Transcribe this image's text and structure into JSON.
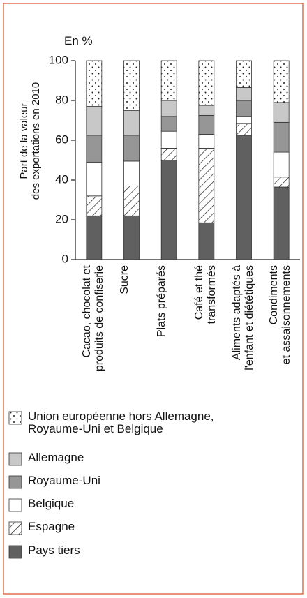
{
  "chart_data": {
    "type": "stacked_bar",
    "y_unit_label": "En %",
    "y_axis_label": "Part de la valeur\ndes exportations en 2010",
    "categories": [
      "Cacao, chocolat et\nproduits de confiserie",
      "Sucre",
      "Plats préparés",
      "Café et thé\ntransformés",
      "Aliments adaptés à\nl'enfant et diététiques",
      "Condiments\net assaisonnements"
    ],
    "series": [
      {
        "name": "Pays tiers",
        "color": "#606060",
        "values": [
          22,
          22,
          50,
          18.5,
          62.5,
          36.5
        ]
      },
      {
        "name": "Espagne",
        "color": "#ffffff",
        "pattern": "hatch",
        "values": [
          10,
          15,
          6,
          37.5,
          6,
          5
        ]
      },
      {
        "name": "Belgique",
        "color": "#ffffff",
        "values": [
          17,
          12.5,
          8.5,
          7,
          3.5,
          12.5
        ]
      },
      {
        "name": "Royaume-Uni",
        "color": "#969696",
        "values": [
          13.5,
          13,
          7.5,
          9.5,
          8,
          15
        ]
      },
      {
        "name": "Allemagne",
        "color": "#c8c8c8",
        "values": [
          14.5,
          12.5,
          8,
          5,
          6.5,
          10
        ]
      },
      {
        "name": "Union européenne hors Allemagne,\nRoyaume-Uni et Belgique",
        "color": "#ffffff",
        "pattern": "dots",
        "values": [
          23,
          25,
          20,
          22.5,
          13.5,
          21
        ]
      }
    ],
    "ylim": [
      0,
      100
    ],
    "yticks": [
      0,
      20,
      40,
      60,
      80,
      100
    ],
    "grid": false
  }
}
